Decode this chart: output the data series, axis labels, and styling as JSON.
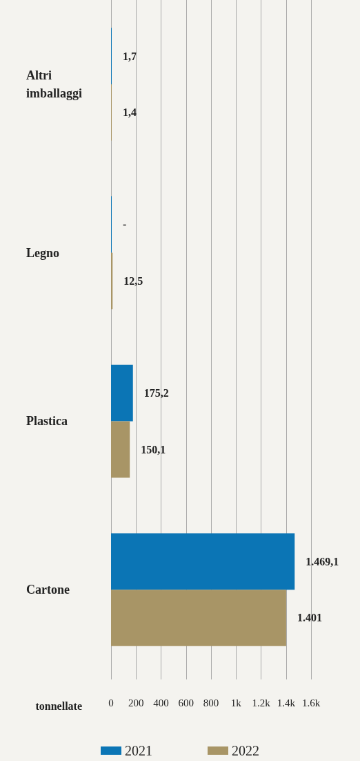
{
  "chart_data": {
    "type": "bar",
    "orientation": "horizontal",
    "categories": [
      "Altri imballaggi",
      "Legno",
      "Plastica",
      "Cartone"
    ],
    "series": [
      {
        "name": "2021",
        "color": "#0b75b5",
        "values": [
          1.7,
          0,
          175.2,
          1469.1
        ],
        "value_labels": [
          "1,7",
          "-",
          "175,2",
          "1.469,1"
        ]
      },
      {
        "name": "2022",
        "color": "#a89566",
        "values": [
          1.4,
          12.5,
          150.1,
          1401
        ],
        "value_labels": [
          "1,4",
          "12,5",
          "150,1",
          "1.401"
        ]
      }
    ],
    "xlabel": "tonnellate",
    "xlim": [
      0,
      1600
    ],
    "xticks": [
      0,
      200,
      400,
      600,
      800,
      {
        "value": 1000,
        "label": "1k"
      },
      {
        "value": 1200,
        "label": "1.2k"
      },
      {
        "value": 1400,
        "label": "1.4k"
      },
      {
        "value": 1600,
        "label": "1.6k"
      }
    ],
    "grid": "x",
    "legend": "bottom"
  }
}
